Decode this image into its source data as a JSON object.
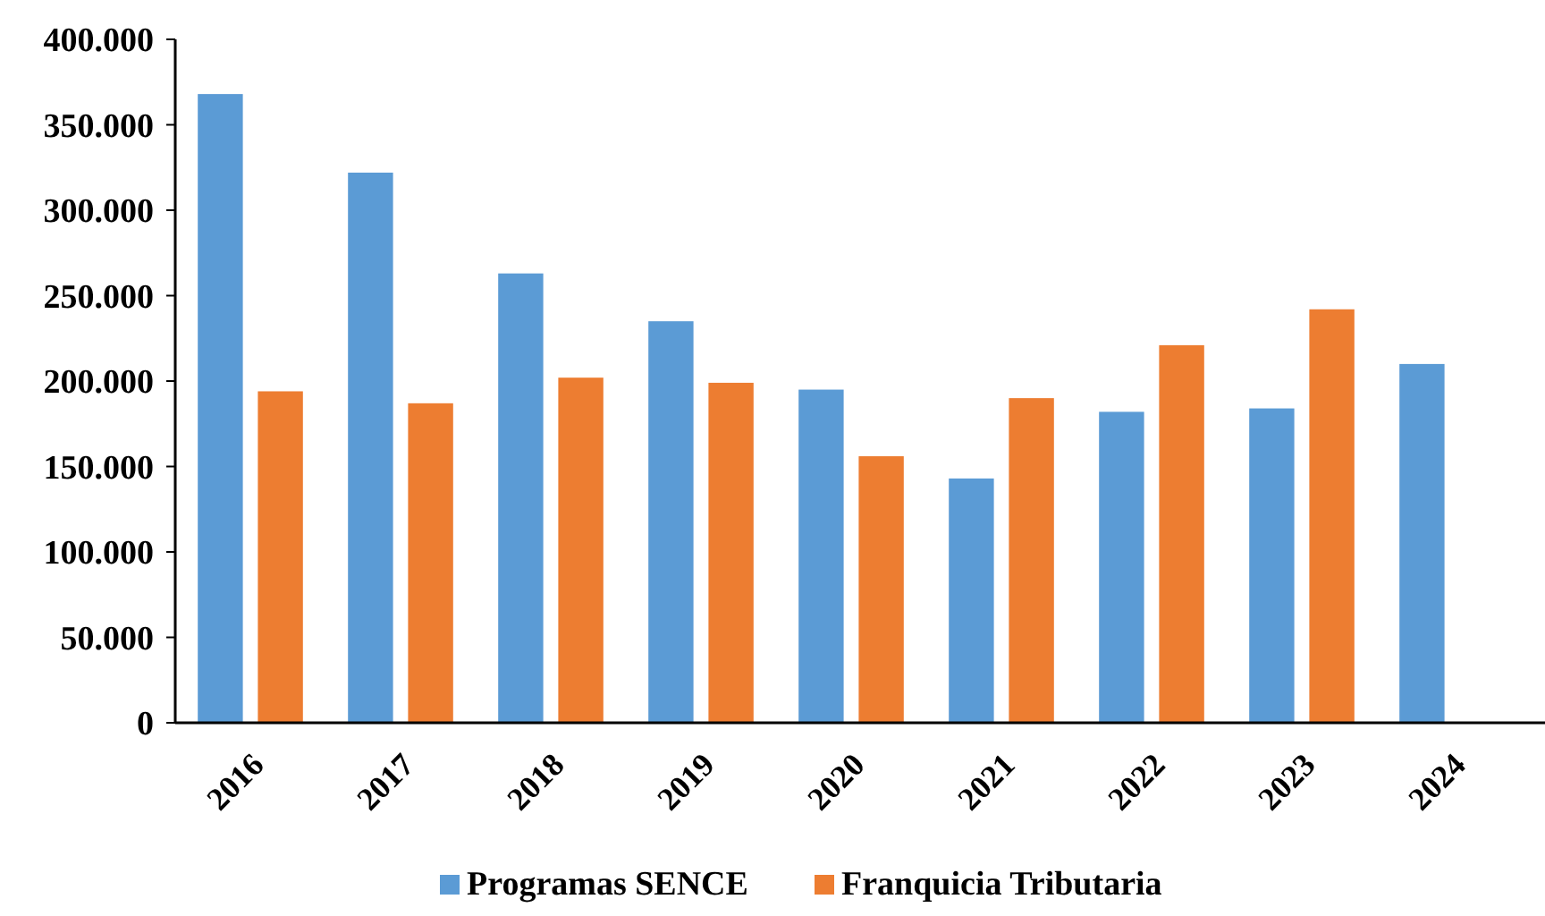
{
  "chart_data": {
    "type": "bar",
    "categories": [
      "2016",
      "2017",
      "2018",
      "2019",
      "2020",
      "2021",
      "2022",
      "2023",
      "2024"
    ],
    "series": [
      {
        "name": "Programas SENCE",
        "color": "#5b9bd5",
        "values": [
          368000,
          322000,
          263000,
          235000,
          195000,
          143000,
          182000,
          184000,
          210000
        ]
      },
      {
        "name": "Franquicia Tributaria",
        "color": "#ed7d31",
        "values": [
          194000,
          187000,
          202000,
          199000,
          156000,
          190000,
          221000,
          242000,
          null
        ]
      }
    ],
    "ylim": [
      0,
      400000
    ],
    "yticks": [
      {
        "value": 0,
        "label": "0"
      },
      {
        "value": 50000,
        "label": "50.000"
      },
      {
        "value": 100000,
        "label": "100.000"
      },
      {
        "value": 150000,
        "label": "150.000"
      },
      {
        "value": 200000,
        "label": "200.000"
      },
      {
        "value": 250000,
        "label": "250.000"
      },
      {
        "value": 300000,
        "label": "300.000"
      },
      {
        "value": 350000,
        "label": "350.000"
      },
      {
        "value": 400000,
        "label": "400.000"
      }
    ],
    "legend": "bottom"
  }
}
